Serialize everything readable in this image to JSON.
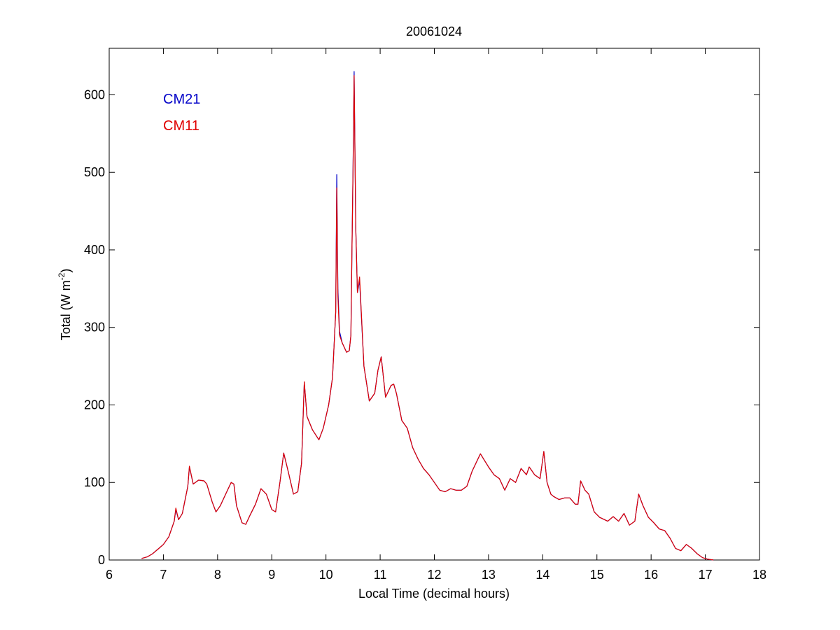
{
  "chart_data": {
    "type": "line",
    "title": "20061024",
    "xlabel": "Local Time (decimal hours)",
    "ylabel": "Total (W m",
    "ylabel_superscript": "-2",
    "ylabel_close": ")",
    "xlim": [
      6,
      18
    ],
    "ylim": [
      0,
      660
    ],
    "xticks": [
      "6",
      "7",
      "8",
      "9",
      "10",
      "11",
      "12",
      "13",
      "14",
      "15",
      "16",
      "17",
      "18"
    ],
    "yticks": [
      "0",
      "100",
      "200",
      "300",
      "400",
      "500",
      "600"
    ],
    "grid": false,
    "legend_position": "top-left",
    "series": [
      {
        "name": "CM21",
        "color": "#0000c8",
        "x": [
          6.6,
          6.7,
          6.8,
          6.9,
          7.0,
          7.1,
          7.2,
          7.23,
          7.28,
          7.35,
          7.45,
          7.48,
          7.55,
          7.65,
          7.75,
          7.8,
          7.9,
          7.97,
          8.05,
          8.15,
          8.25,
          8.3,
          8.35,
          8.45,
          8.52,
          8.6,
          8.7,
          8.8,
          8.9,
          9.0,
          9.07,
          9.15,
          9.22,
          9.3,
          9.4,
          9.48,
          9.55,
          9.6,
          9.65,
          9.75,
          9.87,
          9.95,
          10.05,
          10.12,
          10.18,
          10.2,
          10.22,
          10.25,
          10.3,
          10.38,
          10.43,
          10.46,
          10.48,
          10.5,
          10.52,
          10.55,
          10.58,
          10.62,
          10.7,
          10.8,
          10.9,
          10.96,
          11.02,
          11.1,
          11.2,
          11.25,
          11.3,
          11.4,
          11.5,
          11.6,
          11.7,
          11.8,
          11.9,
          12.0,
          12.1,
          12.2,
          12.3,
          12.4,
          12.5,
          12.6,
          12.7,
          12.85,
          13.0,
          13.1,
          13.2,
          13.3,
          13.4,
          13.5,
          13.6,
          13.7,
          13.75,
          13.8,
          13.85,
          13.95,
          14.02,
          14.08,
          14.15,
          14.2,
          14.3,
          14.4,
          14.5,
          14.6,
          14.65,
          14.7,
          14.78,
          14.85,
          14.95,
          15.05,
          15.2,
          15.3,
          15.4,
          15.5,
          15.6,
          15.7,
          15.77,
          15.85,
          15.95,
          16.05,
          16.15,
          16.25,
          16.35,
          16.45,
          16.55,
          16.65,
          16.75,
          16.85,
          16.95,
          17.05,
          17.15
        ],
        "values": [
          2,
          4,
          8,
          14,
          20,
          30,
          50,
          65,
          52,
          60,
          95,
          120,
          98,
          103,
          102,
          98,
          75,
          62,
          70,
          85,
          100,
          98,
          70,
          48,
          46,
          58,
          72,
          92,
          85,
          65,
          62,
          100,
          138,
          115,
          85,
          88,
          125,
          229,
          185,
          168,
          155,
          170,
          200,
          235,
          320,
          497,
          350,
          295,
          280,
          268,
          270,
          290,
          400,
          510,
          630,
          430,
          345,
          360,
          250,
          205,
          215,
          245,
          262,
          210,
          225,
          227,
          215,
          180,
          170,
          145,
          130,
          118,
          110,
          100,
          90,
          88,
          92,
          90,
          90,
          95,
          115,
          137,
          120,
          110,
          105,
          90,
          105,
          100,
          118,
          110,
          120,
          115,
          110,
          105,
          140,
          100,
          85,
          82,
          78,
          80,
          80,
          72,
          72,
          102,
          90,
          85,
          62,
          55,
          50,
          56,
          50,
          60,
          45,
          50,
          85,
          70,
          55,
          48,
          40,
          38,
          28,
          15,
          12,
          20,
          15,
          8,
          3,
          1,
          0
        ]
      },
      {
        "name": "CM11",
        "color": "#e00000",
        "x": [
          6.6,
          6.7,
          6.8,
          6.9,
          7.0,
          7.1,
          7.2,
          7.23,
          7.28,
          7.35,
          7.45,
          7.48,
          7.55,
          7.65,
          7.75,
          7.8,
          7.9,
          7.97,
          8.05,
          8.15,
          8.25,
          8.3,
          8.35,
          8.45,
          8.52,
          8.6,
          8.7,
          8.8,
          8.9,
          9.0,
          9.07,
          9.15,
          9.22,
          9.3,
          9.4,
          9.48,
          9.55,
          9.6,
          9.65,
          9.75,
          9.87,
          9.95,
          10.05,
          10.12,
          10.18,
          10.2,
          10.22,
          10.25,
          10.3,
          10.38,
          10.43,
          10.46,
          10.48,
          10.5,
          10.52,
          10.55,
          10.58,
          10.62,
          10.7,
          10.8,
          10.9,
          10.96,
          11.02,
          11.1,
          11.2,
          11.25,
          11.3,
          11.4,
          11.5,
          11.6,
          11.7,
          11.8,
          11.9,
          12.0,
          12.1,
          12.2,
          12.3,
          12.4,
          12.5,
          12.6,
          12.7,
          12.85,
          13.0,
          13.1,
          13.2,
          13.3,
          13.4,
          13.5,
          13.6,
          13.7,
          13.75,
          13.8,
          13.85,
          13.95,
          14.02,
          14.08,
          14.15,
          14.2,
          14.3,
          14.4,
          14.5,
          14.6,
          14.65,
          14.7,
          14.78,
          14.85,
          14.95,
          15.05,
          15.2,
          15.3,
          15.4,
          15.5,
          15.6,
          15.7,
          15.77,
          15.85,
          15.95,
          16.05,
          16.15,
          16.25,
          16.35,
          16.45,
          16.55,
          16.65,
          16.75,
          16.85,
          16.95,
          17.05,
          17.15
        ],
        "values": [
          2,
          4,
          8,
          14,
          20,
          30,
          50,
          67,
          52,
          60,
          95,
          121,
          98,
          103,
          102,
          98,
          75,
          62,
          70,
          85,
          100,
          98,
          70,
          48,
          46,
          58,
          72,
          92,
          85,
          65,
          62,
          100,
          138,
          115,
          85,
          88,
          125,
          230,
          185,
          168,
          155,
          170,
          200,
          235,
          320,
          480,
          340,
          290,
          280,
          268,
          270,
          290,
          400,
          505,
          625,
          430,
          345,
          365,
          250,
          205,
          215,
          245,
          262,
          210,
          225,
          227,
          215,
          180,
          170,
          145,
          130,
          118,
          110,
          100,
          90,
          88,
          92,
          90,
          90,
          95,
          115,
          137,
          120,
          110,
          105,
          90,
          105,
          100,
          118,
          110,
          120,
          115,
          110,
          105,
          140,
          100,
          85,
          82,
          78,
          80,
          80,
          72,
          72,
          102,
          90,
          85,
          62,
          55,
          50,
          56,
          50,
          60,
          45,
          50,
          85,
          70,
          55,
          48,
          40,
          38,
          28,
          15,
          12,
          20,
          15,
          8,
          3,
          1,
          0
        ]
      }
    ]
  }
}
